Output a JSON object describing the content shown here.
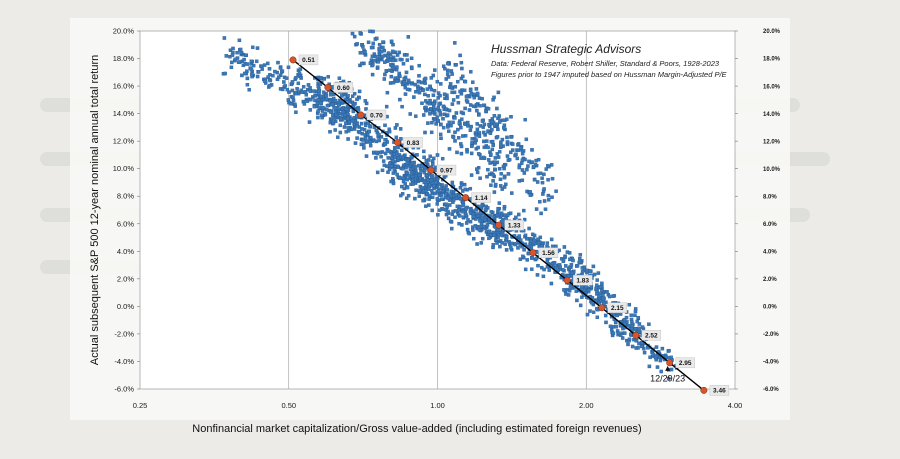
{
  "chart_data": {
    "type": "scatter",
    "title": "Hussman Strategic Advisors",
    "subtitle_lines": [
      "Data: Federal Reserve, Robert Shiller, Standard & Poors, 1928-2023",
      "Figures prior to 1947 imputed based on Hussman Margin-Adjusted P/E"
    ],
    "xlabel": "Nonfinancial market capitalization/Gross value-added (including estimated foreign revenues)",
    "ylabel": "Actual subsequent S&P 500 12-year nominal annual total return",
    "x_scale": "log",
    "xlim": [
      0.25,
      4.0
    ],
    "ylim": [
      -6.0,
      20.0
    ],
    "x_ticks": [
      "0.25",
      "0.50",
      "1.00",
      "2.00",
      "4.00"
    ],
    "y_ticks_left": [
      "-6.0%",
      "-4.0%",
      "-2.0%",
      "0.0%",
      "2.0%",
      "4.0%",
      "6.0%",
      "8.0%",
      "10.0%",
      "12.0%",
      "14.0%",
      "16.0%",
      "18.0%",
      "20.0%"
    ],
    "y_ticks_right": [
      "-6.0%",
      "-4.0%",
      "-2.0%",
      "0.0%",
      "2.0%",
      "4.0%",
      "6.0%",
      "8.0%",
      "10.0%",
      "12.0%",
      "14.0%",
      "16.0%",
      "18.0%",
      "20.0%"
    ],
    "grid": "vertical lines at x ticks",
    "series": [
      {
        "kind": "fit-points",
        "points": [
          {
            "x": 0.51,
            "y": 17.9,
            "label": "0.51"
          },
          {
            "x": 0.6,
            "y": 15.9,
            "label": "0.60"
          },
          {
            "x": 0.7,
            "y": 13.9,
            "label": "0.70"
          },
          {
            "x": 0.83,
            "y": 11.9,
            "label": "0.83"
          },
          {
            "x": 0.97,
            "y": 9.9,
            "label": "0.97"
          },
          {
            "x": 1.14,
            "y": 7.9,
            "label": "1.14"
          },
          {
            "x": 1.33,
            "y": 5.9,
            "label": "1.33"
          },
          {
            "x": 1.56,
            "y": 3.9,
            "label": "1.56"
          },
          {
            "x": 1.83,
            "y": 1.9,
            "label": "1.83"
          },
          {
            "x": 2.15,
            "y": -0.1,
            "label": "2.15"
          },
          {
            "x": 2.52,
            "y": -2.1,
            "label": "2.52"
          },
          {
            "x": 2.95,
            "y": -4.1,
            "label": "2.95"
          },
          {
            "x": 3.46,
            "y": -6.1,
            "label": "3.46"
          }
        ]
      },
      {
        "kind": "scatter-cloud",
        "clusters": [
          {
            "x_from": 0.38,
            "x_to": 0.7,
            "y_from": 18.0,
            "y_to": 13.5,
            "spread": 1.3,
            "n": 220
          },
          {
            "x_from": 0.55,
            "x_to": 1.0,
            "y_from": 16.0,
            "y_to": 9.0,
            "spread": 1.6,
            "n": 360
          },
          {
            "x_from": 0.7,
            "x_to": 1.35,
            "y_from": 19.5,
            "y_to": 10.0,
            "spread": 1.8,
            "n": 360
          },
          {
            "x_from": 0.8,
            "x_to": 1.4,
            "y_from": 10.5,
            "y_to": 5.0,
            "spread": 1.4,
            "n": 400
          },
          {
            "x_from": 1.05,
            "x_to": 1.7,
            "y_from": 17.5,
            "y_to": 8.0,
            "spread": 1.6,
            "n": 200
          },
          {
            "x_from": 1.3,
            "x_to": 2.1,
            "y_from": 6.5,
            "y_to": 1.0,
            "spread": 1.2,
            "n": 300
          },
          {
            "x_from": 1.8,
            "x_to": 2.6,
            "y_from": 2.5,
            "y_to": -2.0,
            "spread": 1.0,
            "n": 180
          },
          {
            "x_from": 2.3,
            "x_to": 3.0,
            "y_from": -1.0,
            "y_to": -4.5,
            "spread": 0.7,
            "n": 90
          }
        ]
      }
    ],
    "annotations": [
      {
        "text": "12/29/23",
        "x": 2.95,
        "y": -5.3
      }
    ],
    "colors": {
      "scatter": "#3a78b8",
      "fit_line": "#000000",
      "fit_point": "#d9542a",
      "label_box": "#e9e9e9"
    }
  }
}
